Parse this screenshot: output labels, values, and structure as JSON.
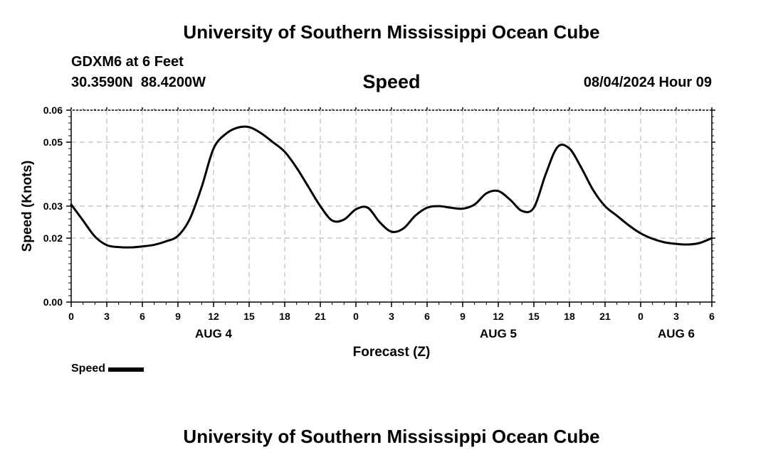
{
  "header": {
    "title_top": "University of Southern Mississippi Ocean Cube",
    "title_bottom": "University of Southern Mississippi Ocean Cube",
    "station": "GDXM6 at 6 Feet",
    "coordinates": "30.3590N  88.4200W",
    "datetime": "08/04/2024 Hour 09"
  },
  "chart_data": {
    "type": "line",
    "title": "Speed",
    "xlabel": "Forecast (Z)",
    "ylabel": "Speed (Knots)",
    "ylim": [
      0,
      0.06
    ],
    "xlim": [
      0,
      54
    ],
    "grid": true,
    "y_ticks": [
      {
        "value": 0.0,
        "label": "0.00"
      },
      {
        "value": 0.02,
        "label": "0.02"
      },
      {
        "value": 0.03,
        "label": "0.03"
      },
      {
        "value": 0.05,
        "label": "0.05"
      },
      {
        "value": 0.06,
        "label": "0.06"
      }
    ],
    "x_ticks": [
      {
        "value": 0,
        "label": "0"
      },
      {
        "value": 3,
        "label": "3"
      },
      {
        "value": 6,
        "label": "6"
      },
      {
        "value": 9,
        "label": "9"
      },
      {
        "value": 12,
        "label": "12"
      },
      {
        "value": 15,
        "label": "15"
      },
      {
        "value": 18,
        "label": "18"
      },
      {
        "value": 21,
        "label": "21"
      },
      {
        "value": 24,
        "label": "0"
      },
      {
        "value": 27,
        "label": "3"
      },
      {
        "value": 30,
        "label": "6"
      },
      {
        "value": 33,
        "label": "9"
      },
      {
        "value": 36,
        "label": "12"
      },
      {
        "value": 39,
        "label": "15"
      },
      {
        "value": 42,
        "label": "18"
      },
      {
        "value": 45,
        "label": "21"
      },
      {
        "value": 48,
        "label": "0"
      },
      {
        "value": 51,
        "label": "3"
      },
      {
        "value": 54,
        "label": "6"
      }
    ],
    "day_labels": [
      {
        "value": 12,
        "label": "AUG 4"
      },
      {
        "value": 36,
        "label": "AUG 5"
      },
      {
        "value": 51,
        "label": "AUG 6"
      }
    ],
    "series": [
      {
        "name": "Speed",
        "color": "#000000",
        "x": [
          0,
          1,
          2,
          3,
          4,
          5,
          6,
          7,
          8,
          9,
          10,
          11,
          12,
          13,
          14,
          15,
          16,
          17,
          18,
          19,
          20,
          21,
          22,
          23,
          24,
          25,
          26,
          27,
          28,
          29,
          30,
          31,
          32,
          33,
          34,
          35,
          36,
          37,
          38,
          39,
          40,
          41,
          42,
          43,
          44,
          45,
          46,
          47,
          48,
          49,
          50,
          51,
          52,
          53,
          54
        ],
        "y": [
          0.0305,
          0.0255,
          0.0205,
          0.0178,
          0.0172,
          0.0171,
          0.0174,
          0.0179,
          0.019,
          0.0207,
          0.026,
          0.036,
          0.048,
          0.0525,
          0.0545,
          0.0547,
          0.0528,
          0.05,
          0.047,
          0.042,
          0.036,
          0.03,
          0.0255,
          0.0258,
          0.029,
          0.0295,
          0.025,
          0.022,
          0.023,
          0.027,
          0.0295,
          0.03,
          0.0295,
          0.0292,
          0.0305,
          0.034,
          0.0347,
          0.032,
          0.0285,
          0.0295,
          0.04,
          0.0485,
          0.048,
          0.042,
          0.035,
          0.03,
          0.027,
          0.024,
          0.0215,
          0.0198,
          0.0187,
          0.0182,
          0.018,
          0.0185,
          0.02
        ]
      }
    ],
    "legend": {
      "label": "Speed",
      "position": "bottom-left"
    }
  }
}
